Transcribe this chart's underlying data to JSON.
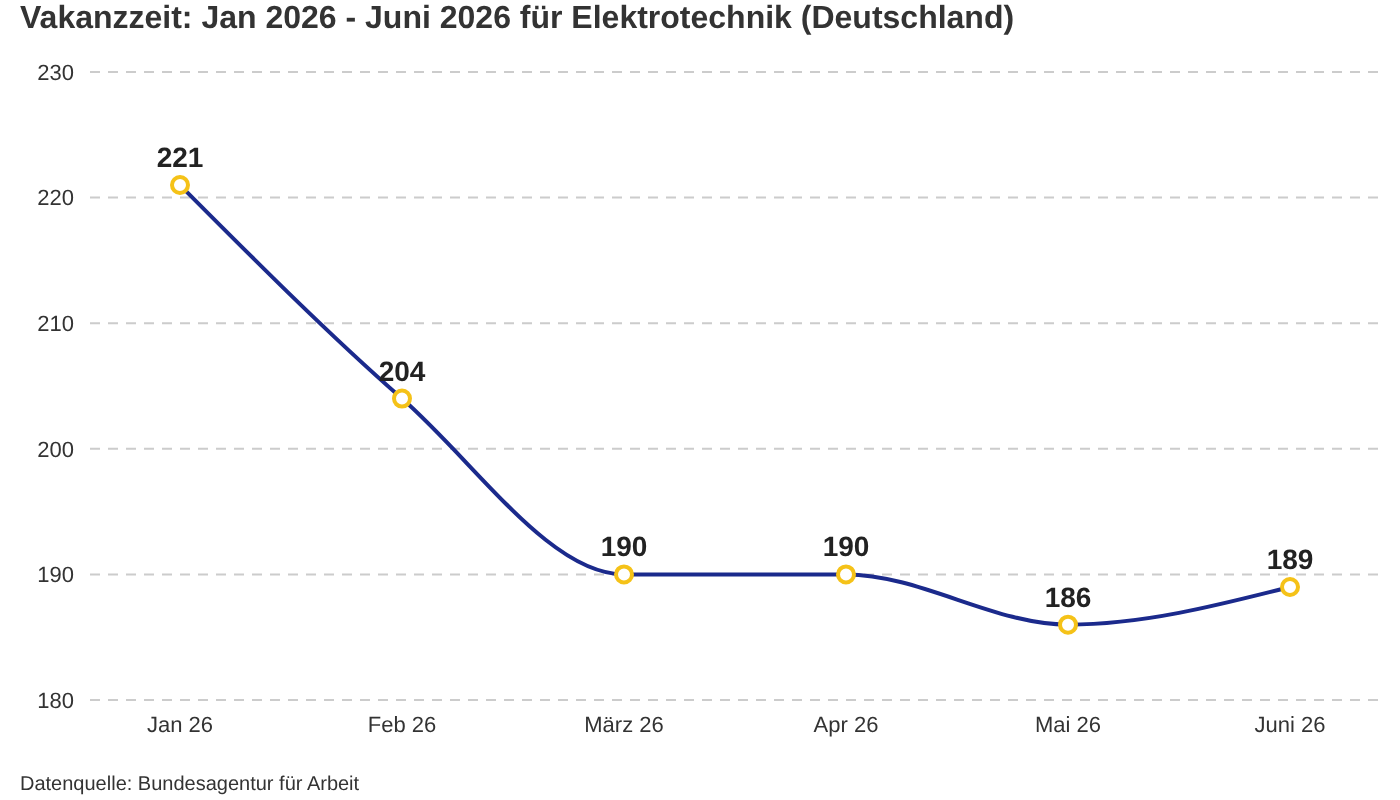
{
  "chart_data": {
    "type": "line",
    "title": "Vakanzzeit: Jan 2026 - Juni 2026 für Elektrotechnik (Deutschland)",
    "categories": [
      "Jan 26",
      "Feb 26",
      "März 26",
      "Apr 26",
      "Mai 26",
      "Juni 26"
    ],
    "series": [
      {
        "color": "#1b2a8c",
        "values": [
          221,
          204,
          190,
          190,
          186,
          189
        ]
      }
    ],
    "ylim": [
      180,
      230
    ],
    "yticks": [
      180,
      190,
      200,
      210,
      220,
      230
    ],
    "grid": "y",
    "marker": "circle",
    "line_style": "solid",
    "data_labels": true,
    "legend": false,
    "annotations": [
      "Datenquelle: Bundesagentur für Arbeit"
    ]
  }
}
